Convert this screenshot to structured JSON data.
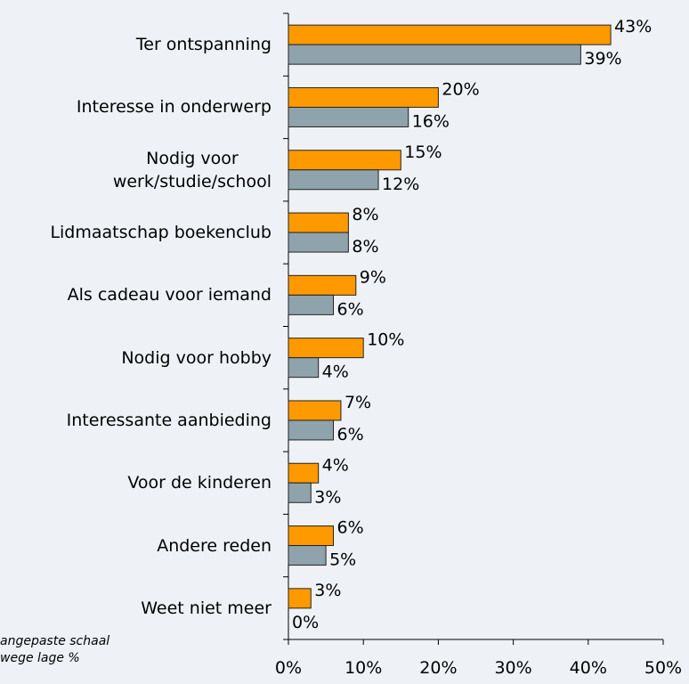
{
  "chart_data": {
    "type": "bar",
    "orientation": "horizontal",
    "categories": [
      "Ter ontspanning",
      "Interesse in onderwerp",
      "Nodig voor\nwerk/studie/school",
      "Lidmaatschap boekenclub",
      "Als cadeau voor iemand",
      "Nodig voor hobby",
      "Interessante aanbieding",
      "Voor de kinderen",
      "Andere reden",
      "Weet niet meer"
    ],
    "series": [
      {
        "color": "#ff9900",
        "values": [
          43,
          20,
          15,
          8,
          9,
          10,
          7,
          4,
          6,
          3
        ],
        "value_labels": [
          "43%",
          "20%",
          "15%",
          "8%",
          "9%",
          "10%",
          "7%",
          "4%",
          "6%",
          "3%"
        ]
      },
      {
        "color": "#8fa3ad",
        "values": [
          39,
          16,
          12,
          8,
          6,
          4,
          6,
          3,
          5,
          0
        ],
        "value_labels": [
          "39%",
          "16%",
          "12%",
          "8%",
          "6%",
          "4%",
          "6%",
          "3%",
          "5%",
          "0%"
        ]
      }
    ],
    "xlim": [
      0,
      50
    ],
    "xticks": [
      {
        "value": 0,
        "label": "0%"
      },
      {
        "value": 10,
        "label": "10%"
      },
      {
        "value": 20,
        "label": "20%"
      },
      {
        "value": 30,
        "label": "30%"
      },
      {
        "value": 40,
        "label": "40%"
      },
      {
        "value": 50,
        "label": "50%"
      }
    ],
    "annotations": [
      "angepaste schaal",
      "wege lage %"
    ]
  }
}
